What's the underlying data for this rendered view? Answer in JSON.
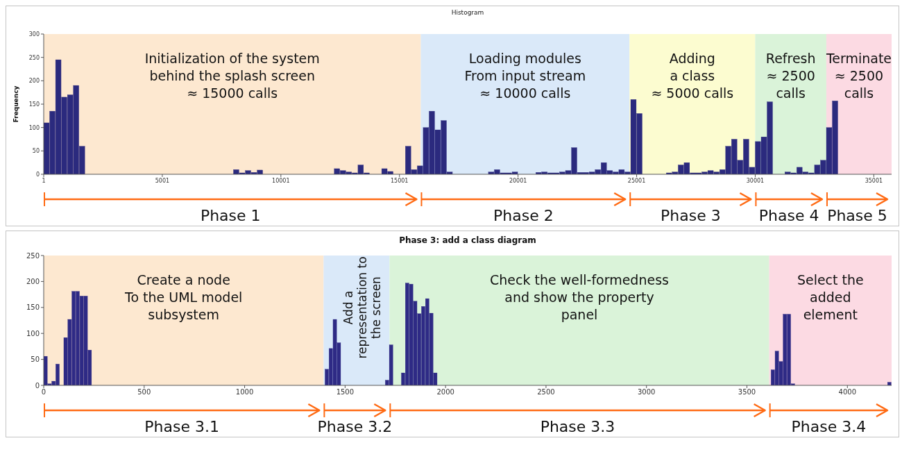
{
  "chart_data": [
    {
      "type": "histogram",
      "title": "Histogram",
      "ylabel": "Frequency",
      "color": "#2b2a7e",
      "bins": [
        1,
        251,
        501,
        751,
        1001,
        1251,
        1501,
        1751,
        8001,
        8251,
        8501,
        8751,
        9001,
        9251,
        12251,
        12501,
        12751,
        13001,
        13251,
        13501,
        13751,
        14251,
        14501,
        14751,
        15251,
        15501,
        15751,
        16001,
        16251,
        16501,
        16751,
        17001,
        17251,
        18751,
        19001,
        19251,
        19751,
        20001,
        20751,
        21001,
        21251,
        21751,
        22001,
        22251,
        22501,
        23001,
        23251,
        23501,
        23751,
        24001,
        24251,
        24501,
        24751,
        25001,
        25251,
        26251,
        26501,
        26751,
        27001,
        27251,
        27751,
        28001,
        28251,
        28501,
        28751,
        29001,
        29251,
        29501,
        29751,
        30001,
        30251,
        30501,
        30751,
        31251,
        31501,
        31751,
        32001,
        32251,
        32501,
        32751,
        33001,
        33251,
        33501
      ],
      "values": [
        110,
        135,
        245,
        165,
        170,
        190,
        60,
        0,
        10,
        3,
        8,
        4,
        9,
        0,
        12,
        8,
        5,
        3,
        20,
        3,
        0,
        12,
        6,
        0,
        60,
        10,
        18,
        100,
        135,
        95,
        115,
        5,
        0,
        5,
        10,
        3,
        5,
        0,
        4,
        5,
        3,
        5,
        8,
        57,
        4,
        5,
        10,
        25,
        8,
        5,
        10,
        5,
        160,
        130,
        0,
        3,
        5,
        20,
        25,
        3,
        5,
        8,
        5,
        10,
        60,
        75,
        30,
        75,
        15,
        70,
        80,
        155,
        0,
        5,
        3,
        15,
        5,
        3,
        20,
        30,
        100,
        157
      ],
      "xlim": [
        1,
        35751
      ],
      "xticks": [
        1,
        5001,
        10001,
        15001,
        20001,
        25001,
        30001,
        35001
      ],
      "ylim": [
        0,
        300
      ],
      "yticks": [
        0,
        50,
        100,
        150,
        200,
        250,
        300
      ],
      "bands": [
        {
          "axis": "x",
          "from": 1,
          "to": 15900,
          "label": "Initialization of the system\nbehind the splash screen\n≈ 15000 calls",
          "color": "#fde4c8"
        },
        {
          "axis": "x",
          "from": 15900,
          "to": 24700,
          "label": "Loading modules\nFrom input stream\n≈ 10000 calls",
          "color": "#d3e5f8"
        },
        {
          "axis": "x",
          "from": 24700,
          "to": 30000,
          "label": "Adding\na class\n≈ 5000 calls",
          "color": "#fbfbc8"
        },
        {
          "axis": "x",
          "from": 30000,
          "to": 33000,
          "label": "Refresh\n≈ 2500\ncalls",
          "color": "#d4f1d2"
        },
        {
          "axis": "x",
          "from": 33000,
          "to": 35751,
          "label": "Terminate\n≈ 2500\ncalls",
          "color": "#fbd3de"
        }
      ],
      "annotations": [
        "Phase 1",
        "Phase 2",
        "Phase 3",
        "Phase 4",
        "Phase 5"
      ]
    },
    {
      "type": "histogram",
      "title": "Phase 3: add a class diagram",
      "color": "#2e2a85",
      "bins": [
        0,
        20,
        40,
        60,
        80,
        100,
        120,
        140,
        160,
        180,
        200,
        220,
        240,
        1400,
        1420,
        1440,
        1460,
        1480,
        1700,
        1720,
        1740,
        1780,
        1800,
        1820,
        1840,
        1860,
        1880,
        1900,
        1920,
        1940,
        1960,
        3620,
        3640,
        3660,
        3680,
        3700,
        3720,
        3740,
        4200,
        4220
      ],
      "values": [
        56,
        3,
        8,
        41,
        0,
        92,
        127,
        181,
        181,
        172,
        172,
        68,
        0,
        31,
        71,
        127,
        82,
        0,
        10,
        78,
        0,
        24,
        197,
        195,
        162,
        138,
        152,
        167,
        139,
        24,
        0,
        30,
        66,
        46,
        137,
        137,
        3,
        0,
        6
      ],
      "xlim": [
        0,
        4220
      ],
      "xticks": [
        0,
        500,
        1000,
        1500,
        2000,
        2500,
        3000,
        3500,
        4000
      ],
      "ylim": [
        0,
        250
      ],
      "yticks": [
        0,
        50,
        100,
        150,
        200,
        250
      ],
      "bands": [
        {
          "axis": "x",
          "from": 0,
          "to": 1393,
          "label": "Create a node\nTo the UML model\nsubsystem",
          "color": "#fde4c8"
        },
        {
          "axis": "x",
          "from": 1393,
          "to": 1721,
          "label": "Add a\nrepresentation to\nthe screen",
          "color": "#d3e5f8"
        },
        {
          "axis": "x",
          "from": 1721,
          "to": 3611,
          "label": "Check the well-formedness\nand show the property\npanel",
          "color": "#d4f1d2"
        },
        {
          "axis": "x",
          "from": 3611,
          "to": 4220,
          "label": "Select the\nadded\nelement",
          "color": "#fbd3de"
        }
      ],
      "annotations": [
        "Phase 3.1",
        "Phase 3.2",
        "Phase 3.3",
        "Phase 3.4"
      ]
    }
  ]
}
